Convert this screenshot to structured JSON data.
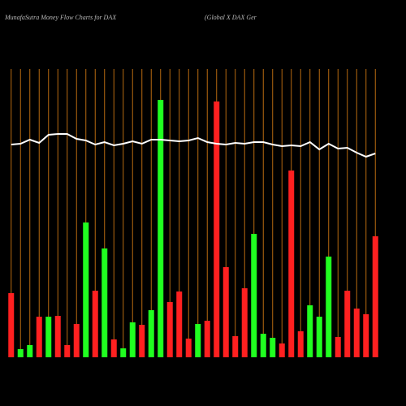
{
  "chart_data": {
    "type": "bar",
    "title": "MunafaSutra  Money Flow  Charts for DAX",
    "subtitle": "(Global X  DAX  Ger",
    "categories": [
      null,
      null,
      null,
      null,
      null,
      null,
      null,
      null,
      null,
      null,
      null,
      null,
      null,
      null,
      null,
      null,
      null,
      null,
      null,
      null,
      null,
      null,
      null,
      null,
      null,
      null,
      null,
      null,
      null,
      null,
      null,
      null,
      null,
      null,
      null,
      null,
      null,
      null,
      null,
      null
    ],
    "values": [
      79,
      10,
      15,
      50,
      50,
      51,
      15,
      41,
      166,
      82,
      134,
      22,
      11,
      43,
      40,
      58,
      317,
      68,
      81,
      23,
      41,
      45,
      315,
      111,
      26,
      85,
      152,
      29,
      24,
      17,
      230,
      32,
      64,
      50,
      124,
      25,
      82,
      60,
      53,
      149
    ],
    "bar_colors": [
      "#ff2020",
      "#20ff20",
      "#20ff20",
      "#ff2020",
      "#20ff20",
      "#ff2020",
      "#ff2020",
      "#ff2020",
      "#20ff20",
      "#ff2020",
      "#20ff20",
      "#ff2020",
      "#20ff20",
      "#20ff20",
      "#ff2020",
      "#20ff20",
      "#20ff20",
      "#ff2020",
      "#ff2020",
      "#ff2020",
      "#20ff20",
      "#ff2020",
      "#ff2020",
      "#ff2020",
      "#ff2020",
      "#ff2020",
      "#20ff20",
      "#20ff20",
      "#20ff20",
      "#ff2020",
      "#ff2020",
      "#ff2020",
      "#20ff20",
      "#20ff20",
      "#20ff20",
      "#ff2020",
      "#ff2020",
      "#ff2020",
      "#ff2020",
      "#ff2020"
    ],
    "line": {
      "color": "#ffffff",
      "values": [
        262,
        263,
        268,
        264,
        274,
        275,
        275,
        269,
        267,
        262,
        265,
        261,
        263,
        266,
        263,
        268,
        268,
        267,
        266,
        267,
        270,
        265,
        263,
        262,
        264,
        263,
        265,
        265,
        262,
        260,
        261,
        260,
        265,
        256,
        263,
        257,
        258,
        252,
        247,
        251
      ]
    },
    "ylim": [
      0,
      355
    ],
    "grid_color": "#b86a10"
  }
}
